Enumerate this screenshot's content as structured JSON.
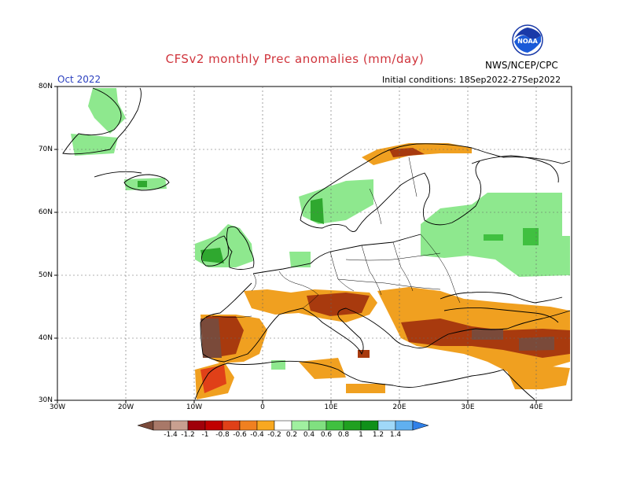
{
  "header": {
    "title": "CFSv2 monthly Prec anomalies (mm/day)",
    "month": "Oct 2022",
    "initial_conditions": "Initial conditions: 18Sep2022-27Sep2022",
    "agency": "NWS/NCEP/CPC",
    "logo_text": "NOAA"
  },
  "colors": {
    "title": "#d0343c",
    "month": "#2a3fbf",
    "strong_dry": "#7a4a3a",
    "dry": "#a83a0e",
    "mild_dry": "#f0a020",
    "wet": "#8ee88e",
    "strong_wet": "#2fa82f"
  },
  "map": {
    "lat_labels": [
      "80N",
      "70N",
      "60N",
      "50N",
      "40N",
      "30N"
    ],
    "lon_labels": [
      "30W",
      "20W",
      "10W",
      "0",
      "10E",
      "20E",
      "30E",
      "40E"
    ]
  },
  "colorbar": {
    "labels": [
      "-1.4",
      "-1.2",
      "-1",
      "-0.8",
      "-0.6",
      "-0.4",
      "-0.2",
      "0.2",
      "0.4",
      "0.6",
      "0.8",
      "1",
      "1.2",
      "1.4"
    ],
    "colors": [
      "#7a4a3a",
      "#a87868",
      "#c8a090",
      "#a0000a",
      "#c00000",
      "#e04018",
      "#f08020",
      "#f8a820",
      "#ffffff",
      "#a0f0a0",
      "#80e080",
      "#40c040",
      "#20a020",
      "#10901a",
      "#a0d8f8",
      "#60b0f0",
      "#3080e8"
    ]
  }
}
